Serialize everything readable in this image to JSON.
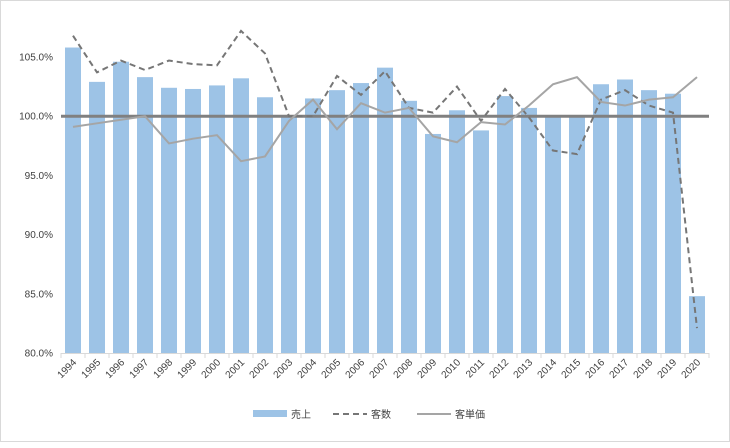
{
  "chart_data": {
    "type": "bar",
    "title": "",
    "xlabel": "",
    "ylabel": "",
    "ylim": [
      80,
      107.5
    ],
    "yticks": [
      80,
      85,
      90,
      95,
      100,
      105
    ],
    "ytick_labels": [
      "80.0%",
      "85.0%",
      "90.0%",
      "95.0%",
      "100.0%",
      "105.0%"
    ],
    "reference_line": 100,
    "grid": false,
    "legend_position": "bottom",
    "categories": [
      "1994",
      "1995",
      "1996",
      "1997",
      "1998",
      "1999",
      "2000",
      "2001",
      "2002",
      "2003",
      "2004",
      "2005",
      "2006",
      "2007",
      "2008",
      "2009",
      "2010",
      "2011",
      "2012",
      "2013",
      "2014",
      "2015",
      "2016",
      "2017",
      "2018",
      "2019",
      "2020"
    ],
    "series": [
      {
        "name": "売上",
        "kind": "bar",
        "color": "#9dc3e6",
        "values": [
          105.8,
          102.9,
          104.6,
          103.3,
          102.4,
          102.3,
          102.6,
          103.2,
          101.6,
          99.9,
          101.5,
          102.2,
          102.8,
          104.1,
          101.3,
          98.5,
          100.5,
          98.8,
          101.7,
          100.7,
          99.9,
          100.1,
          102.7,
          103.1,
          102.2,
          101.9,
          84.8
        ]
      },
      {
        "name": "客数",
        "kind": "line-dashed",
        "color": "#767676",
        "values": [
          106.8,
          103.7,
          104.7,
          103.9,
          104.7,
          104.4,
          104.3,
          107.2,
          105.3,
          100.0,
          100.0,
          103.4,
          101.8,
          103.8,
          100.7,
          100.3,
          102.5,
          99.6,
          102.3,
          99.9,
          97.1,
          96.8,
          101.4,
          102.2,
          100.9,
          100.3,
          82.1
        ]
      },
      {
        "name": "客単価",
        "kind": "line",
        "color": "#a5a5a5",
        "values": [
          99.1,
          99.4,
          99.7,
          100.0,
          97.7,
          98.1,
          98.4,
          96.2,
          96.6,
          99.6,
          101.4,
          98.9,
          101.1,
          100.3,
          100.7,
          98.3,
          97.8,
          99.5,
          99.3,
          100.9,
          102.7,
          103.3,
          101.2,
          100.9,
          101.4,
          101.6,
          103.3
        ]
      }
    ]
  }
}
